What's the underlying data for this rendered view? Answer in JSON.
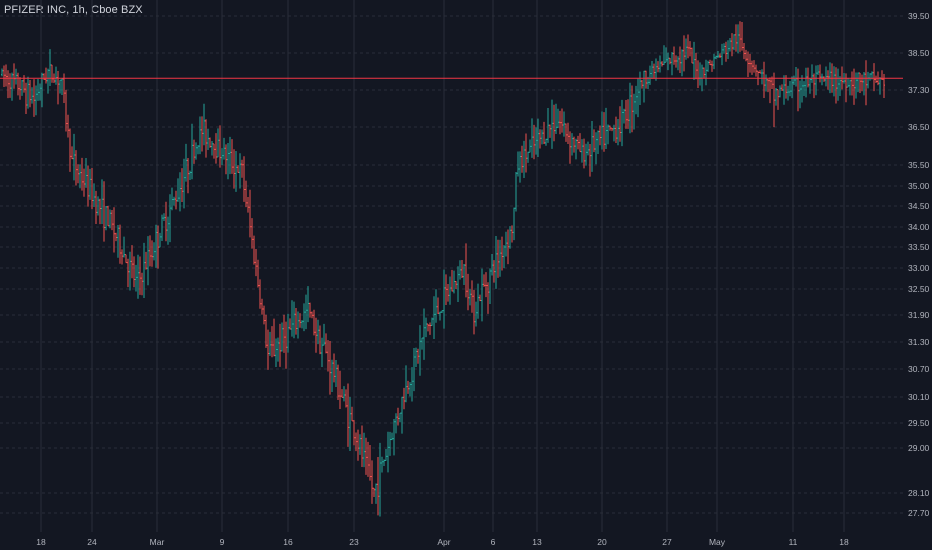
{
  "chart_data": {
    "type": "ohlc",
    "title": "PFIZER INC, 1h, Cboe BZX",
    "last_price": 37.68,
    "colors": {
      "background": "#131722",
      "up": "#26a69a",
      "down": "#ef5350",
      "grid": "#2a2e39",
      "text": "#b2b5be",
      "price_line": "#f23645"
    },
    "grid": true,
    "y_axis": {
      "position": "right",
      "ticks": [
        "39.50",
        "38.50",
        "37.30",
        "36.50",
        "35.50",
        "35.00",
        "34.50",
        "34.00",
        "33.50",
        "33.00",
        "32.50",
        "31.90",
        "31.30",
        "30.70",
        "30.10",
        "29.50",
        "29.00",
        "28.10",
        "27.70"
      ]
    },
    "x_axis": {
      "ticks": [
        "18",
        "24",
        "Mar",
        "9",
        "16",
        "23",
        "Apr",
        "6",
        "13",
        "20",
        "27",
        "May",
        "11",
        "18"
      ]
    },
    "series_path": [
      [
        "18",
        37.8
      ],
      [
        "24",
        35.6
      ],
      [
        "24",
        34.0
      ],
      [
        "Mar",
        32.6
      ],
      [
        "Mar",
        34.8
      ],
      [
        "9",
        36.4
      ],
      [
        "9",
        35.3
      ],
      [
        "16",
        31.0
      ],
      [
        "16",
        32.0
      ],
      [
        "23",
        30.6
      ],
      [
        "23",
        28.1
      ],
      [
        "Apr",
        31.5
      ],
      [
        "Apr",
        33.0
      ],
      [
        "6",
        32.0
      ],
      [
        "6",
        34.0
      ],
      [
        "13",
        35.5
      ],
      [
        "13",
        36.7
      ],
      [
        "20",
        35.8
      ],
      [
        "20",
        36.6
      ],
      [
        "27",
        37.8
      ],
      [
        "27",
        38.6
      ],
      [
        "May",
        37.8
      ],
      [
        "May",
        38.9
      ],
      [
        "11",
        37.2
      ],
      [
        "11",
        37.6
      ],
      [
        "18",
        37.1
      ],
      [
        "18",
        37.9
      ],
      [
        "18",
        37.6
      ]
    ]
  }
}
